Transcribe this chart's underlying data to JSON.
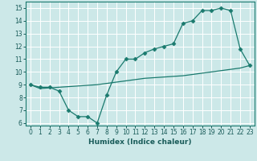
{
  "x": [
    0,
    1,
    2,
    3,
    4,
    5,
    6,
    7,
    8,
    9,
    10,
    11,
    12,
    13,
    14,
    15,
    16,
    17,
    18,
    19,
    20,
    21,
    22,
    23
  ],
  "y_upper": [
    9.0,
    8.8,
    8.8,
    8.5,
    7.0,
    6.5,
    6.5,
    6.0,
    8.2,
    10.0,
    11.0,
    11.0,
    11.5,
    11.8,
    12.0,
    12.2,
    13.8,
    14.0,
    14.8,
    14.8,
    15.0,
    14.8,
    11.8,
    10.5
  ],
  "y_lower": [
    9.0,
    8.7,
    8.75,
    8.8,
    8.85,
    8.9,
    8.95,
    9.0,
    9.1,
    9.2,
    9.3,
    9.4,
    9.5,
    9.55,
    9.6,
    9.65,
    9.7,
    9.8,
    9.9,
    10.0,
    10.1,
    10.2,
    10.3,
    10.5
  ],
  "line_color": "#1a7a6e",
  "marker": "D",
  "markersize": 2.5,
  "bg_color": "#cce8e8",
  "grid_color": "#ffffff",
  "xlabel": "Humidex (Indice chaleur)",
  "xlim": [
    -0.5,
    23.5
  ],
  "ylim": [
    5.8,
    15.5
  ],
  "yticks": [
    6,
    7,
    8,
    9,
    10,
    11,
    12,
    13,
    14,
    15
  ],
  "xticks": [
    0,
    1,
    2,
    3,
    4,
    5,
    6,
    7,
    8,
    9,
    10,
    11,
    12,
    13,
    14,
    15,
    16,
    17,
    18,
    19,
    20,
    21,
    22,
    23
  ],
  "label_fontsize": 6.5,
  "tick_fontsize": 5.5,
  "tick_color": "#1a5c5a"
}
